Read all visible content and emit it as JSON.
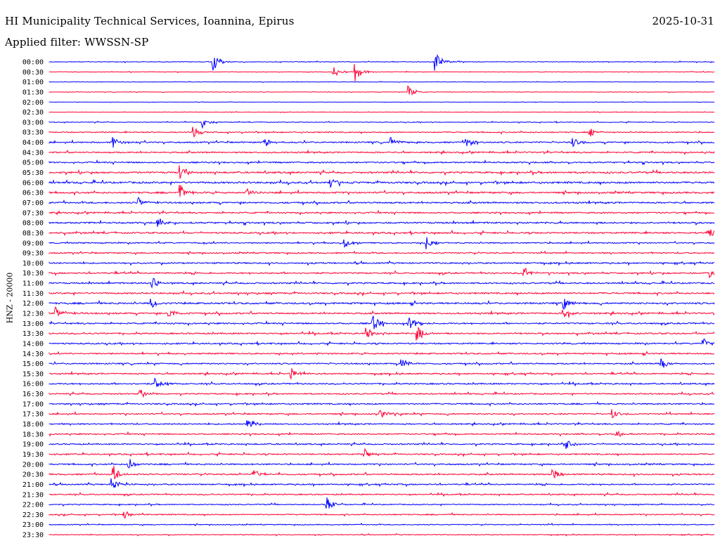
{
  "header": {
    "title": "HI Municipality Technical Services, Ioannina, Epirus",
    "date": "2025-10-31",
    "filter": "Applied filter: WWSSN-SP"
  },
  "chart_data": {
    "type": "line",
    "title": "HI Municipality Technical Services, Ioannina, Epirus",
    "ylabel": "HNZ - 20000",
    "xlabel": "",
    "minutes_per_line": 30,
    "colors": [
      "#0000ff",
      "#ff0033"
    ],
    "row_labels": [
      "00:00",
      "00:30",
      "01:00",
      "01:30",
      "02:00",
      "02:30",
      "03:00",
      "03:30",
      "04:00",
      "04:30",
      "05:00",
      "05:30",
      "06:00",
      "06:30",
      "07:00",
      "07:30",
      "08:00",
      "08:30",
      "09:00",
      "09:30",
      "10:00",
      "10:30",
      "11:00",
      "11:30",
      "12:00",
      "12:30",
      "13:00",
      "13:30",
      "14:00",
      "14:30",
      "15:00",
      "15:30",
      "16:00",
      "16:30",
      "17:00",
      "17:30",
      "18:00",
      "18:30",
      "19:00",
      "19:30",
      "20:00",
      "20:30",
      "21:00",
      "21:30",
      "22:00",
      "22:30",
      "23:00",
      "23:30"
    ],
    "noise_level": [
      1.2,
      1,
      0.8,
      0.8,
      0.6,
      0.8,
      1.2,
      2,
      2.5,
      2.5,
      2.5,
      3,
      3.2,
      3,
      2.8,
      2.5,
      2.8,
      2.8,
      2.2,
      2.2,
      2.5,
      2.6,
      2.6,
      2.8,
      3,
      2.8,
      2.6,
      2.6,
      2.5,
      2.5,
      2.4,
      2.4,
      2.5,
      2.3,
      2.4,
      2.4,
      2.3,
      2.3,
      2.3,
      2.4,
      2.5,
      2.5,
      2.3,
      2.2,
      1.8,
      2,
      1.6,
      1.4
    ],
    "events": [
      [
        0,
        7.4,
        14
      ],
      [
        0,
        17.4,
        16
      ],
      [
        1,
        12.8,
        10
      ],
      [
        1,
        13.8,
        14
      ],
      [
        3,
        16.2,
        10
      ],
      [
        6,
        6.9,
        9
      ],
      [
        7,
        6.5,
        8
      ],
      [
        7,
        24.4,
        6
      ],
      [
        8,
        2.9,
        8
      ],
      [
        8,
        9.7,
        8
      ],
      [
        8,
        15.4,
        8
      ],
      [
        8,
        18.8,
        9
      ],
      [
        8,
        23.6,
        9
      ],
      [
        11,
        5.9,
        12
      ],
      [
        12,
        12.7,
        8
      ],
      [
        13,
        5.9,
        12
      ],
      [
        13,
        8.9,
        8
      ],
      [
        14,
        4.0,
        9
      ],
      [
        16,
        4.9,
        8
      ],
      [
        17,
        29.7,
        8
      ],
      [
        18,
        13.3,
        9
      ],
      [
        18,
        17.0,
        9
      ],
      [
        21,
        29.8,
        9
      ],
      [
        21,
        21.4,
        9
      ],
      [
        22,
        4.6,
        10
      ],
      [
        24,
        4.6,
        10
      ],
      [
        24,
        23.2,
        9
      ],
      [
        25,
        0.3,
        10
      ],
      [
        25,
        5.4,
        10
      ],
      [
        25,
        23.2,
        8
      ],
      [
        26,
        14.6,
        12
      ],
      [
        26,
        16.2,
        12
      ],
      [
        27,
        14.3,
        10
      ],
      [
        27,
        16.6,
        12
      ],
      [
        28,
        29.5,
        8
      ],
      [
        30,
        15.9,
        9
      ],
      [
        30,
        27.6,
        8
      ],
      [
        31,
        10.9,
        9
      ],
      [
        32,
        4.8,
        12
      ],
      [
        33,
        4.1,
        8
      ],
      [
        35,
        14.9,
        8
      ],
      [
        35,
        25.4,
        8
      ],
      [
        36,
        8.9,
        12
      ],
      [
        37,
        25.5,
        8
      ],
      [
        38,
        23.3,
        9
      ],
      [
        39,
        14.2,
        8
      ],
      [
        40,
        3.6,
        9
      ],
      [
        41,
        2.9,
        14
      ],
      [
        41,
        9.2,
        9
      ],
      [
        41,
        22.7,
        10
      ],
      [
        42,
        2.8,
        10
      ],
      [
        44,
        12.5,
        12
      ],
      [
        45,
        3.4,
        6
      ]
    ]
  }
}
